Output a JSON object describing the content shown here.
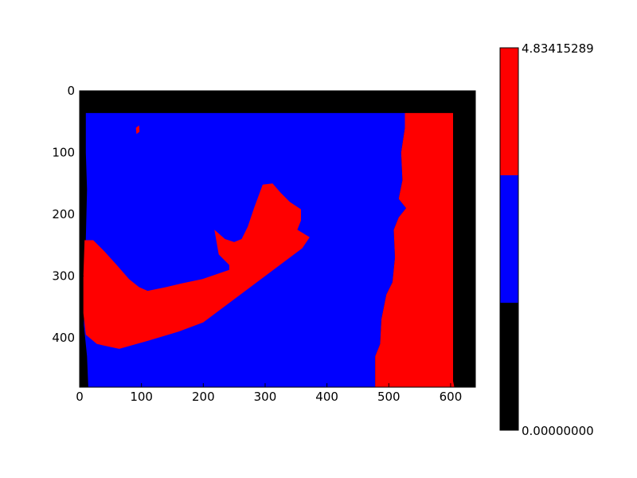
{
  "chart_data": {
    "type": "heatmap",
    "title": "",
    "xlabel": "",
    "ylabel": "",
    "xlim": [
      0,
      640
    ],
    "ylim": [
      480,
      0
    ],
    "x_ticks": [
      0,
      100,
      200,
      300,
      400,
      500,
      600
    ],
    "y_ticks": [
      0,
      100,
      200,
      300,
      400
    ],
    "grid": false,
    "image_regions": [
      {
        "label": "black background",
        "level": 0,
        "color": "#000000",
        "polygon": [
          [
            0,
            0
          ],
          [
            640,
            0
          ],
          [
            640,
            480
          ],
          [
            0,
            480
          ]
        ]
      },
      {
        "label": "blue region",
        "level": 1,
        "color": "#0000ff",
        "polygon": [
          [
            10,
            36
          ],
          [
            526,
            36
          ],
          [
            526,
            60
          ],
          [
            520,
            100
          ],
          [
            522,
            145
          ],
          [
            516,
            175
          ],
          [
            528,
            190
          ],
          [
            516,
            205
          ],
          [
            508,
            225
          ],
          [
            510,
            270
          ],
          [
            506,
            310
          ],
          [
            496,
            330
          ],
          [
            488,
            370
          ],
          [
            486,
            410
          ],
          [
            478,
            430
          ],
          [
            478,
            480
          ],
          [
            14,
            480
          ],
          [
            12,
            430
          ],
          [
            7,
            380
          ],
          [
            8,
            300
          ],
          [
            10,
            240
          ],
          [
            12,
            160
          ],
          [
            10,
            100
          ]
        ]
      },
      {
        "label": "red band right",
        "level": 2,
        "color": "#ff0000",
        "polygon": [
          [
            526,
            36
          ],
          [
            604,
            36
          ],
          [
            604,
            470
          ],
          [
            606,
            480
          ],
          [
            478,
            480
          ],
          [
            478,
            430
          ],
          [
            486,
            410
          ],
          [
            488,
            370
          ],
          [
            496,
            330
          ],
          [
            506,
            310
          ],
          [
            510,
            270
          ],
          [
            508,
            225
          ],
          [
            516,
            205
          ],
          [
            528,
            190
          ],
          [
            516,
            175
          ],
          [
            522,
            145
          ],
          [
            520,
            100
          ],
          [
            526,
            60
          ]
        ]
      },
      {
        "label": "red arm",
        "level": 2,
        "color": "#ff0000",
        "polygon": [
          [
            8,
            242
          ],
          [
            22,
            242
          ],
          [
            40,
            260
          ],
          [
            60,
            282
          ],
          [
            80,
            305
          ],
          [
            96,
            318
          ],
          [
            110,
            324
          ],
          [
            140,
            318
          ],
          [
            165,
            312
          ],
          [
            198,
            305
          ],
          [
            242,
            290
          ],
          [
            242,
            282
          ],
          [
            225,
            265
          ],
          [
            218,
            225
          ],
          [
            235,
            240
          ],
          [
            250,
            245
          ],
          [
            262,
            240
          ],
          [
            272,
            220
          ],
          [
            282,
            190
          ],
          [
            296,
            152
          ],
          [
            312,
            150
          ],
          [
            325,
            165
          ],
          [
            340,
            180
          ],
          [
            358,
            192
          ],
          [
            358,
            210
          ],
          [
            352,
            225
          ],
          [
            372,
            237
          ],
          [
            360,
            255
          ],
          [
            340,
            270
          ],
          [
            300,
            300
          ],
          [
            240,
            345
          ],
          [
            200,
            375
          ],
          [
            160,
            390
          ],
          [
            110,
            405
          ],
          [
            64,
            418
          ],
          [
            28,
            410
          ],
          [
            10,
            395
          ],
          [
            6,
            360
          ],
          [
            6,
            300
          ]
        ]
      },
      {
        "label": "small red spot",
        "level": 2,
        "color": "#ff0000",
        "polygon": [
          [
            91,
            60
          ],
          [
            96,
            56
          ],
          [
            97,
            66
          ],
          [
            92,
            70
          ]
        ]
      }
    ],
    "colorbar": {
      "min": 0.0,
      "max": 4.83415289,
      "tick_labels": [
        "4.83415289",
        "0.00000000"
      ],
      "bands": [
        {
          "color": "#ff0000",
          "from": 0.6667,
          "to": 1.0
        },
        {
          "color": "#0000ff",
          "from": 0.3333,
          "to": 0.6667
        },
        {
          "color": "#000000",
          "from": 0.0,
          "to": 0.3333
        }
      ]
    }
  }
}
